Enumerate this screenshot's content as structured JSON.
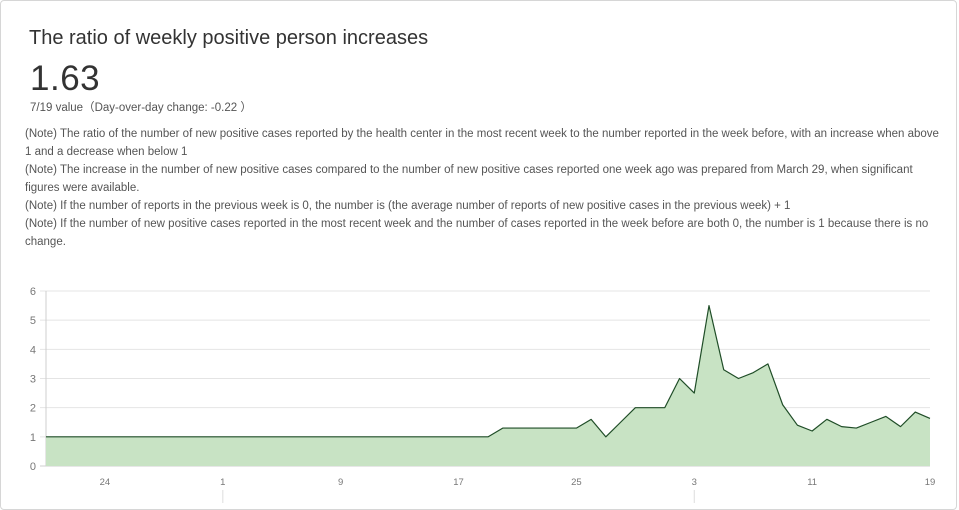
{
  "title": "The ratio of weekly positive person increases",
  "value": "1.63",
  "subtitle": "7/19 value（Day-over-day change: -0.22 ）",
  "notes": [
    "(Note) The ratio of the number of new positive cases reported by the health center in the most recent week to the number reported in the week before, with an increase when above 1 and a decrease when below 1",
    "(Note) The increase in the number of new positive cases compared to the number of new positive cases reported one week ago was prepared from March 29, when significant figures were available.",
    "(Note) If the number of reports in the previous week is 0, the number is (the average number of reports of new positive cases in the previous week) + 1",
    "(Note) If the number of new positive cases reported in the most recent week and the number of cases reported in the week before are both 0, the number is 1 because there is no change."
  ],
  "colors": {
    "fill": "#c8e3c4",
    "line": "#1f4d27",
    "grid": "#e4e4e4",
    "axis_text": "#777777"
  },
  "chart_data": {
    "type": "area",
    "title": "",
    "xlabel": "",
    "ylabel": "",
    "ylim": [
      0,
      6
    ],
    "yticks": [
      0,
      1,
      2,
      3,
      4,
      5,
      6
    ],
    "grid": true,
    "x_tick_labels": [
      {
        "day": 4,
        "label": "24"
      },
      {
        "day": 12,
        "label": "1"
      },
      {
        "day": 20,
        "label": "9"
      },
      {
        "day": 28,
        "label": "17"
      },
      {
        "day": 36,
        "label": "25"
      },
      {
        "day": 44,
        "label": "3"
      },
      {
        "day": 52,
        "label": "11"
      },
      {
        "day": 60,
        "label": "19"
      }
    ],
    "x": [
      0,
      1,
      2,
      3,
      4,
      5,
      6,
      7,
      8,
      9,
      10,
      11,
      12,
      13,
      14,
      15,
      16,
      17,
      18,
      19,
      20,
      21,
      22,
      23,
      24,
      25,
      26,
      27,
      28,
      29,
      30,
      31,
      32,
      33,
      34,
      35,
      36,
      37,
      38,
      39,
      40,
      41,
      42,
      43,
      44,
      45,
      46,
      47,
      48,
      49,
      50,
      51,
      52,
      53,
      54,
      55,
      56,
      57,
      58,
      59,
      60
    ],
    "values": [
      1.0,
      1.0,
      1.0,
      1.0,
      1.0,
      1.0,
      1.0,
      1.0,
      1.0,
      1.0,
      1.0,
      1.0,
      1.0,
      1.0,
      1.0,
      1.0,
      1.0,
      1.0,
      1.0,
      1.0,
      1.0,
      1.0,
      1.0,
      1.0,
      1.0,
      1.0,
      1.0,
      1.0,
      1.0,
      1.0,
      1.0,
      1.3,
      1.3,
      1.3,
      1.3,
      1.3,
      1.3,
      1.6,
      1.0,
      1.5,
      2.0,
      2.0,
      2.0,
      3.0,
      2.5,
      5.5,
      3.3,
      3.0,
      3.2,
      3.5,
      2.1,
      1.4,
      1.2,
      1.6,
      1.35,
      1.3,
      1.5,
      1.7,
      1.35,
      1.85,
      1.63
    ]
  }
}
